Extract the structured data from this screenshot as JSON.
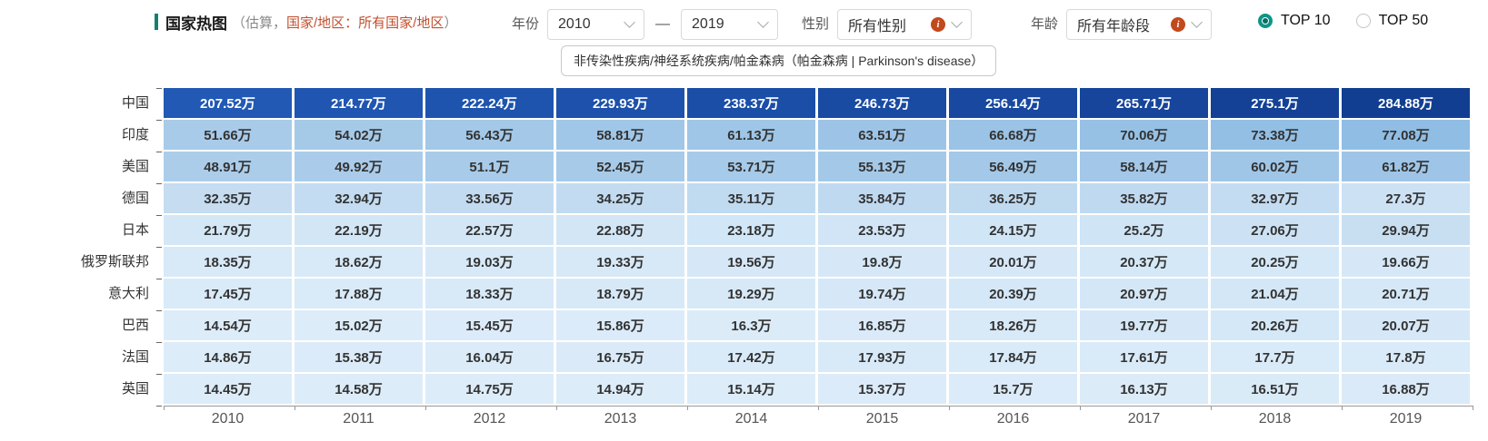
{
  "header": {
    "title": "国家热图",
    "subtitle_open": "（估算，",
    "subtitle_emph": "国家/地区：所有国家/地区",
    "subtitle_close": "）",
    "accent_bar_color": "#128170",
    "subtitle_emph_color": "#c3502f"
  },
  "filters": {
    "year_label": "年份",
    "year_from": "2010",
    "year_to": "2019",
    "range_dash": "—",
    "gender_label": "性别",
    "gender_value": "所有性别",
    "age_label": "年龄",
    "age_value": "所有年龄段",
    "info_glyph": "i",
    "info_color": "#c2491d"
  },
  "top_toggle": {
    "radio_color": "#0d9488",
    "radio_dot_color": "#0c6b5f",
    "options": [
      {
        "label": "TOP 10",
        "selected": true
      },
      {
        "label": "TOP 50",
        "selected": false
      }
    ]
  },
  "disease_filter": {
    "label": "非传染性疾病/神经系统疾病/帕金森病（帕金森病 | Parkinson's disease）"
  },
  "chart_data": {
    "type": "heatmap",
    "title": "国家热图",
    "x": [
      "2010",
      "2011",
      "2012",
      "2013",
      "2014",
      "2015",
      "2016",
      "2017",
      "2018",
      "2019"
    ],
    "unit_suffix": "万",
    "rows": [
      {
        "country": "中国",
        "values": [
          207.52,
          214.77,
          222.24,
          229.93,
          238.37,
          246.73,
          256.14,
          265.71,
          275.1,
          284.88
        ]
      },
      {
        "country": "印度",
        "values": [
          51.66,
          54.02,
          56.43,
          58.81,
          61.13,
          63.51,
          66.68,
          70.06,
          73.38,
          77.08
        ]
      },
      {
        "country": "美国",
        "values": [
          48.91,
          49.92,
          51.1,
          52.45,
          53.71,
          55.13,
          56.49,
          58.14,
          60.02,
          61.82
        ]
      },
      {
        "country": "德国",
        "values": [
          32.35,
          32.94,
          33.56,
          34.25,
          35.11,
          35.84,
          36.25,
          35.82,
          32.97,
          27.3
        ]
      },
      {
        "country": "日本",
        "values": [
          21.79,
          22.19,
          22.57,
          22.88,
          23.18,
          23.53,
          24.15,
          25.2,
          27.06,
          29.94
        ]
      },
      {
        "country": "俄罗斯联邦",
        "values": [
          18.35,
          18.62,
          19.03,
          19.33,
          19.56,
          19.8,
          20.01,
          20.37,
          20.25,
          19.66
        ]
      },
      {
        "country": "意大利",
        "values": [
          17.45,
          17.88,
          18.33,
          18.79,
          19.29,
          19.74,
          20.39,
          20.97,
          21.04,
          20.71
        ]
      },
      {
        "country": "巴西",
        "values": [
          14.54,
          15.02,
          15.45,
          15.86,
          16.3,
          16.85,
          18.26,
          19.77,
          20.26,
          20.07
        ]
      },
      {
        "country": "法国",
        "values": [
          14.86,
          15.38,
          16.04,
          16.75,
          17.42,
          17.93,
          17.84,
          17.61,
          17.7,
          17.8
        ]
      },
      {
        "country": "英国",
        "values": [
          14.45,
          14.58,
          14.75,
          14.94,
          15.14,
          15.37,
          15.7,
          16.13,
          16.51,
          16.88
        ]
      }
    ],
    "vmin": 0,
    "vmax": 284.88,
    "color_stops": [
      [
        0.0,
        "#f5fafe"
      ],
      [
        0.051,
        "#ddecf9"
      ],
      [
        0.08,
        "#d2e6f6"
      ],
      [
        0.115,
        "#c4dcf1"
      ],
      [
        0.18,
        "#a8cbe9"
      ],
      [
        0.27,
        "#90bde4"
      ],
      [
        0.5,
        "#5590d2"
      ],
      [
        0.728,
        "#2159b5"
      ],
      [
        1.0,
        "#123e92"
      ]
    ],
    "dark_text_threshold": 0.5,
    "cell_text_dark": "#333333",
    "cell_text_light": "#ffffff",
    "grid": false,
    "legend": "none"
  }
}
